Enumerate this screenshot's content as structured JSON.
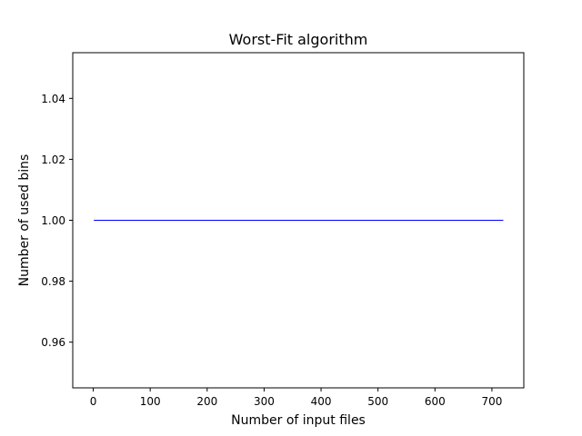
{
  "chart_data": {
    "type": "line",
    "title": "Worst-Fit algorithm",
    "xlabel": "Number of input files",
    "ylabel": "Number of used bins",
    "xlim": [
      -36,
      756
    ],
    "ylim": [
      0.945,
      1.055
    ],
    "x_ticks": [
      0,
      100,
      200,
      300,
      400,
      500,
      600,
      700
    ],
    "y_ticks": [
      0.96,
      0.98,
      1.0,
      1.02,
      1.04
    ],
    "x_tick_labels": [
      "0",
      "100",
      "200",
      "300",
      "400",
      "500",
      "600",
      "700"
    ],
    "y_tick_labels": [
      "0.96",
      "0.98",
      "1.00",
      "1.02",
      "1.04"
    ],
    "grid": false,
    "series": [
      {
        "color": "#0000ff",
        "x": [
          1,
          720
        ],
        "y": [
          1.0,
          1.0
        ]
      }
    ]
  }
}
